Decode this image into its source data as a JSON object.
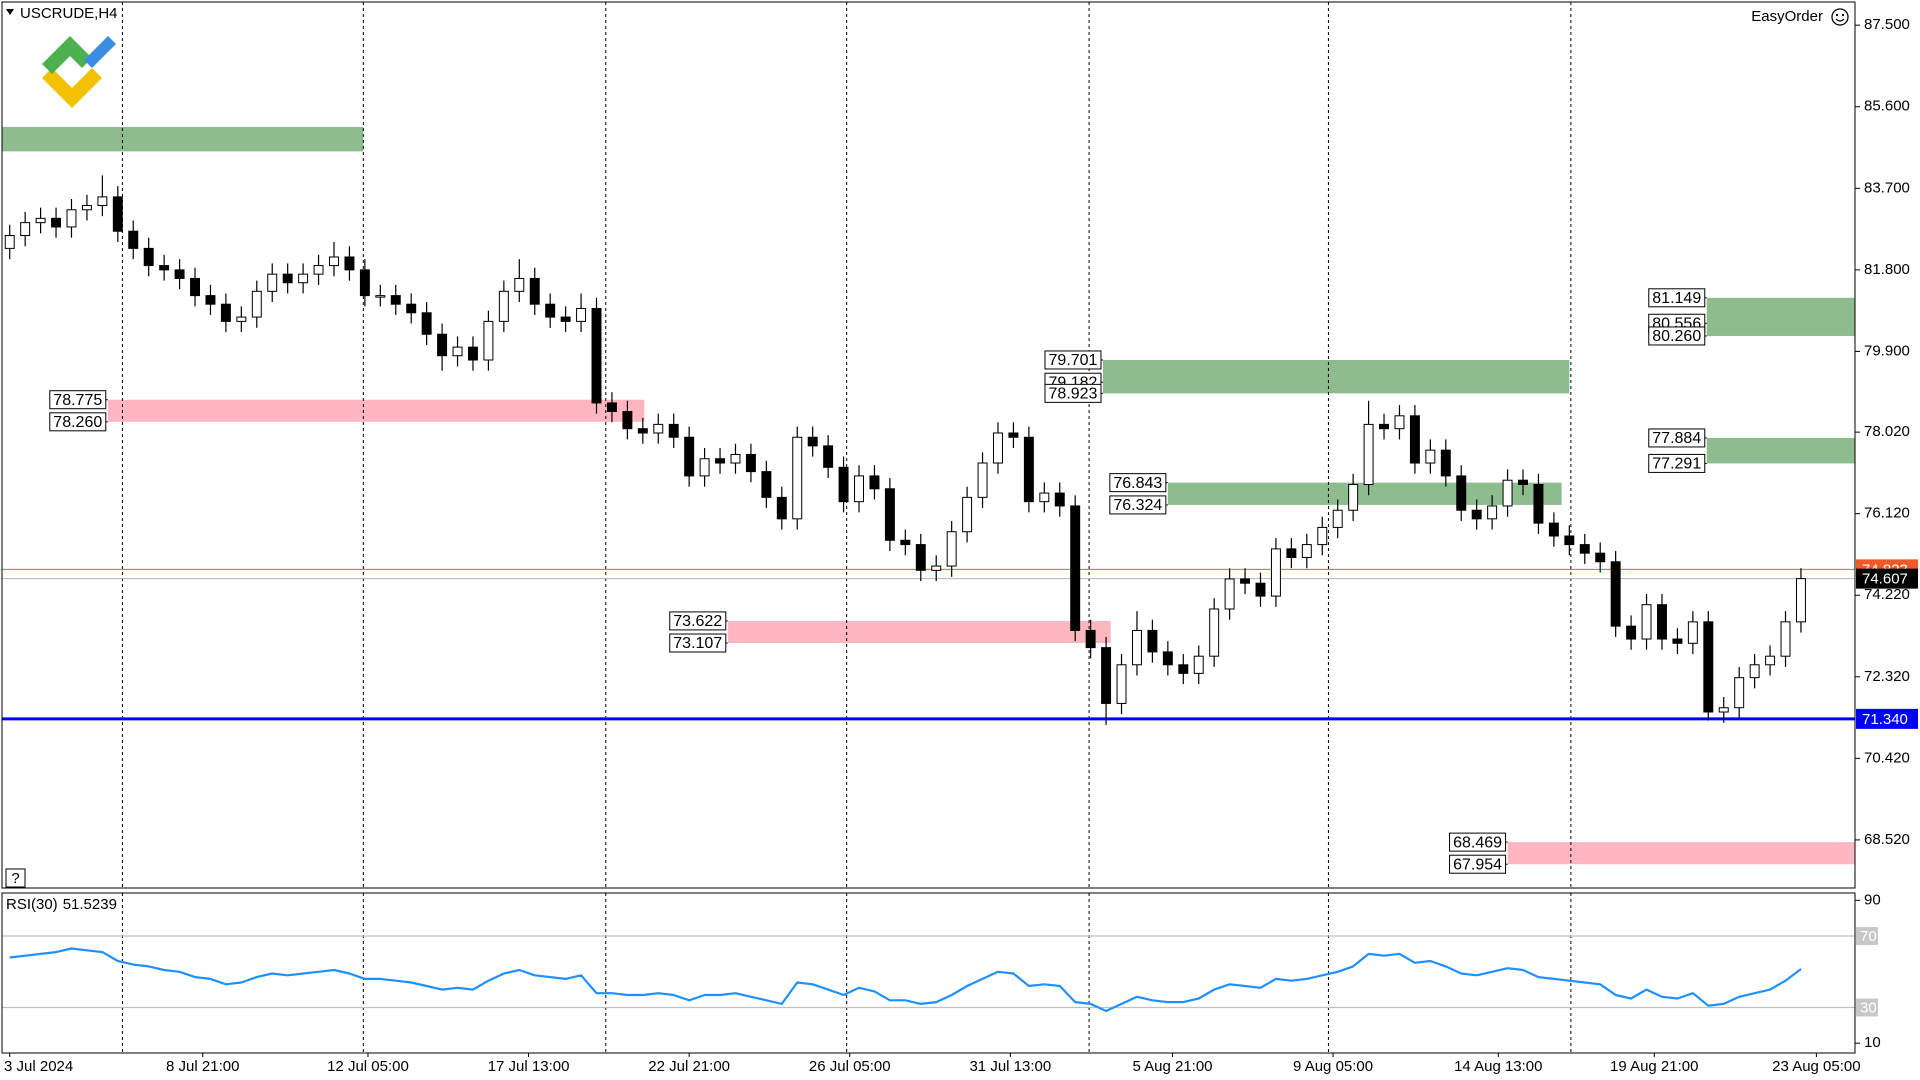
{
  "header": {
    "symbol": "USCRUDE,H4",
    "tool": "EasyOrder",
    "help": "?"
  },
  "chart_data": [
    {
      "type": "candlestick",
      "xlim": [
        -0.5,
        119.5
      ],
      "ylim": [
        67.4,
        88.04
      ],
      "yticks": [
        {
          "value": 87.5,
          "label": "87.500"
        },
        {
          "value": 85.6,
          "label": "85.600"
        },
        {
          "value": 83.7,
          "label": "83.700"
        },
        {
          "value": 81.8,
          "label": "81.800"
        },
        {
          "value": 79.9,
          "label": "79.900"
        },
        {
          "value": 78.02,
          "label": "78.020"
        },
        {
          "value": 76.12,
          "label": "76.120"
        },
        {
          "value": 74.22,
          "label": "74.220"
        },
        {
          "value": 72.32,
          "label": "72.320"
        },
        {
          "value": 70.42,
          "label": "70.420"
        },
        {
          "value": 68.52,
          "label": "68.520"
        }
      ],
      "up_color": "#ffffff",
      "down_color": "#000000",
      "open": [
        82.3,
        82.6,
        82.9,
        83.0,
        82.8,
        83.2,
        83.3,
        83.5,
        82.7,
        82.3,
        81.9,
        81.8,
        81.6,
        81.2,
        81.0,
        80.6,
        80.7,
        81.3,
        81.7,
        81.5,
        81.7,
        81.9,
        82.1,
        81.8,
        81.2,
        81.2,
        81.0,
        80.8,
        80.3,
        79.8,
        80.0,
        79.7,
        80.6,
        81.3,
        81.6,
        81.0,
        80.7,
        80.6,
        80.9,
        78.7,
        78.5,
        78.1,
        78.0,
        78.2,
        77.9,
        77.0,
        77.4,
        77.3,
        77.5,
        77.1,
        76.5,
        76.0,
        77.9,
        77.7,
        77.2,
        76.4,
        77.0,
        76.7,
        75.5,
        75.4,
        74.8,
        74.9,
        75.7,
        76.5,
        77.3,
        78.0,
        77.9,
        76.4,
        76.6,
        76.3,
        73.4,
        73.0,
        71.7,
        72.6,
        73.4,
        72.9,
        72.6,
        72.4,
        72.8,
        73.9,
        74.6,
        74.5,
        74.2,
        75.3,
        75.1,
        75.4,
        75.8,
        76.2,
        76.8,
        78.2,
        78.1,
        78.4,
        77.3,
        77.6,
        77.0,
        76.2,
        76.0,
        76.3,
        76.9,
        76.8,
        75.9,
        75.6,
        75.4,
        75.2,
        75.0,
        73.5,
        73.2,
        74.0,
        73.2,
        73.1,
        73.6,
        71.5,
        71.6,
        72.3,
        72.6,
        72.8,
        73.6
      ],
      "high": [
        82.85,
        83.15,
        83.25,
        83.25,
        83.45,
        83.55,
        84.0,
        83.75,
        82.95,
        82.55,
        82.15,
        82.05,
        81.85,
        81.45,
        81.25,
        80.95,
        81.55,
        81.95,
        81.95,
        81.95,
        82.15,
        82.45,
        82.35,
        82.05,
        81.45,
        81.45,
        81.25,
        81.05,
        80.55,
        80.25,
        80.25,
        80.85,
        81.55,
        82.05,
        81.85,
        81.25,
        80.95,
        81.25,
        81.15,
        78.95,
        78.75,
        78.35,
        78.45,
        78.45,
        78.15,
        77.65,
        77.65,
        77.75,
        77.75,
        77.35,
        76.75,
        78.15,
        78.15,
        77.95,
        77.45,
        77.25,
        77.25,
        76.95,
        75.75,
        75.65,
        75.15,
        75.95,
        76.75,
        77.55,
        78.25,
        78.25,
        78.15,
        76.85,
        76.85,
        76.55,
        73.65,
        73.25,
        72.85,
        73.85,
        73.65,
        73.15,
        72.85,
        73.05,
        74.15,
        74.85,
        74.85,
        74.75,
        75.55,
        75.55,
        75.65,
        76.05,
        76.45,
        77.05,
        78.75,
        78.45,
        78.65,
        78.65,
        77.85,
        77.85,
        77.25,
        76.45,
        76.55,
        77.15,
        77.15,
        77.05,
        76.15,
        75.85,
        75.65,
        75.45,
        75.25,
        73.75,
        74.25,
        74.25,
        73.45,
        73.85,
        73.85,
        71.85,
        72.55,
        72.85,
        73.05,
        73.85,
        74.85
      ],
      "low": [
        82.05,
        82.35,
        82.65,
        82.55,
        82.55,
        82.95,
        83.05,
        82.45,
        82.05,
        81.65,
        81.55,
        81.35,
        80.95,
        80.75,
        80.35,
        80.35,
        80.45,
        81.05,
        81.25,
        81.25,
        81.45,
        81.65,
        81.55,
        80.95,
        80.95,
        80.75,
        80.55,
        80.05,
        79.45,
        79.55,
        79.45,
        79.45,
        80.35,
        81.05,
        80.75,
        80.45,
        80.35,
        80.35,
        78.45,
        78.25,
        77.85,
        77.75,
        77.75,
        77.65,
        76.75,
        76.75,
        77.05,
        77.05,
        76.85,
        76.25,
        75.75,
        75.75,
        77.45,
        76.95,
        76.15,
        76.15,
        76.45,
        75.25,
        75.15,
        74.55,
        74.55,
        74.65,
        75.45,
        76.25,
        77.05,
        77.65,
        76.15,
        76.15,
        76.05,
        73.15,
        72.75,
        71.2,
        71.45,
        72.35,
        72.65,
        72.35,
        72.15,
        72.15,
        72.55,
        73.65,
        74.25,
        73.95,
        73.95,
        74.85,
        74.85,
        75.15,
        75.55,
        75.95,
        76.55,
        77.85,
        77.85,
        77.05,
        77.05,
        76.75,
        75.95,
        75.75,
        75.75,
        76.05,
        76.55,
        75.65,
        75.35,
        75.15,
        74.95,
        74.75,
        73.25,
        72.95,
        72.95,
        72.95,
        72.85,
        72.85,
        71.3,
        71.25,
        71.35,
        72.05,
        72.35,
        72.55,
        73.35
      ],
      "close": [
        82.6,
        82.9,
        83.0,
        82.8,
        83.2,
        83.3,
        83.5,
        82.7,
        82.3,
        81.9,
        81.8,
        81.6,
        81.2,
        81.0,
        80.6,
        80.7,
        81.3,
        81.7,
        81.5,
        81.7,
        81.9,
        82.1,
        81.8,
        81.2,
        81.2,
        81.0,
        80.8,
        80.3,
        79.8,
        80.0,
        79.7,
        80.6,
        81.3,
        81.6,
        81.0,
        80.7,
        80.6,
        80.9,
        78.7,
        78.5,
        78.1,
        78.0,
        78.2,
        77.9,
        77.0,
        77.4,
        77.3,
        77.5,
        77.1,
        76.5,
        76.0,
        77.9,
        77.7,
        77.2,
        76.4,
        77.0,
        76.7,
        75.5,
        75.4,
        74.8,
        74.9,
        75.7,
        76.5,
        77.3,
        78.0,
        77.9,
        76.4,
        76.6,
        76.3,
        73.4,
        73.0,
        71.7,
        72.6,
        73.4,
        72.9,
        72.6,
        72.4,
        72.8,
        73.9,
        74.6,
        74.5,
        74.2,
        75.3,
        75.1,
        75.4,
        75.8,
        76.2,
        76.8,
        78.2,
        78.1,
        78.4,
        77.3,
        77.6,
        77.0,
        76.2,
        76.0,
        76.3,
        76.9,
        76.8,
        75.9,
        75.6,
        75.4,
        75.2,
        75.0,
        73.5,
        73.2,
        74.0,
        73.2,
        73.1,
        73.6,
        71.5,
        71.6,
        72.3,
        72.6,
        72.8,
        73.6,
        74.607
      ],
      "separators": [
        7.3,
        22.9,
        38.6,
        54.2,
        69.9,
        85.4,
        101.1
      ],
      "zones": [
        {
          "levels": [
            85.13,
            84.56
          ],
          "x": [
            -0.5,
            22.9
          ],
          "color": "#8fbc8f",
          "labeled": false
        },
        {
          "levels": [
            78.775,
            {
              "value": 78.26,
              "label": "78.260"
            }
          ],
          "x": [
            6.35,
            41.1
          ],
          "color": "#ffb6c1",
          "labeled": true
        },
        {
          "levels": [
            73.622,
            73.107
          ],
          "x": [
            46.5,
            71.3
          ],
          "color": "#ffb6c1",
          "labeled": true
        },
        {
          "levels": [
            79.701,
            79.182,
            78.923
          ],
          "x": [
            70.8,
            101.0
          ],
          "color": "#8fbc8f",
          "labeled": true
        },
        {
          "levels": [
            76.843,
            76.324
          ],
          "x": [
            75.0,
            100.5
          ],
          "color": "#8fbc8f",
          "labeled": true
        },
        {
          "levels": [
            81.149,
            80.556,
            {
              "value": 80.26,
              "label": "80.260"
            }
          ],
          "x": [
            109.9,
            119.5
          ],
          "color": "#8fbc8f",
          "labeled": true
        },
        {
          "levels": [
            77.884,
            77.291
          ],
          "x": [
            109.9,
            119.5
          ],
          "color": "#8fbc8f",
          "labeled": true
        },
        {
          "levels": [
            68.469,
            67.954
          ],
          "x": [
            97.0,
            119.5
          ],
          "color": "#ffb6c1",
          "labeled": true
        }
      ],
      "hlines": [
        {
          "value": 71.34,
          "label": "71.340",
          "color": "#0000ff"
        }
      ],
      "ask": {
        "value": 74.823,
        "color": "#f05a28"
      },
      "bid": {
        "value": 74.607,
        "color": "#b4b4b4"
      }
    },
    {
      "type": "line",
      "xlim": [
        -0.5,
        119.5
      ],
      "ylim": [
        4.5,
        94.1
      ],
      "yticks": [
        90,
        10
      ],
      "levels": [
        70,
        30
      ],
      "series": [
        {
          "name": "RSI(30)",
          "color": "#1e90ff",
          "values": [
            58,
            59,
            60,
            61,
            63,
            62,
            61,
            56,
            54,
            53,
            51,
            50,
            47,
            46,
            43,
            44,
            47,
            49,
            48,
            49,
            50,
            51,
            49,
            46,
            46,
            45,
            44,
            42,
            40,
            41,
            40,
            45,
            49,
            51,
            48,
            47,
            46,
            48,
            38,
            38,
            37,
            37,
            38,
            37,
            34,
            37,
            37,
            38,
            36,
            34,
            32,
            44,
            43,
            40,
            37,
            41,
            39,
            34,
            34,
            32,
            33,
            37,
            42,
            46,
            50,
            49,
            42,
            43,
            42,
            33,
            32,
            28,
            32,
            36,
            34,
            33,
            33,
            35,
            40,
            43,
            42,
            41,
            46,
            45,
            46,
            48,
            50,
            53,
            60,
            59,
            60,
            55,
            56,
            53,
            49,
            48,
            50,
            52,
            51,
            47,
            46,
            45,
            44,
            43,
            37,
            35,
            40,
            36,
            35,
            38,
            31,
            32,
            36,
            38,
            40,
            45,
            51.5239
          ]
        }
      ],
      "xticks": [
        {
          "value": 0,
          "label": "3 Jul 2024"
        },
        {
          "value": 12.5,
          "label": "8 Jul 21:00"
        },
        {
          "value": 23.2,
          "label": "12 Jul 05:00"
        },
        {
          "value": 33.6,
          "label": "17 Jul 13:00"
        },
        {
          "value": 44.0,
          "label": "22 Jul 21:00"
        },
        {
          "value": 54.4,
          "label": "26 Jul 05:00"
        },
        {
          "value": 64.8,
          "label": "31 Jul 13:00"
        },
        {
          "value": 75.3,
          "label": "5 Aug 21:00"
        },
        {
          "value": 85.7,
          "label": "9 Aug 05:00"
        },
        {
          "value": 96.4,
          "label": "14 Aug 13:00"
        },
        {
          "value": 106.5,
          "label": "19 Aug 21:00"
        },
        {
          "value": 117.0,
          "label": "23 Aug 05:00"
        }
      ]
    }
  ]
}
